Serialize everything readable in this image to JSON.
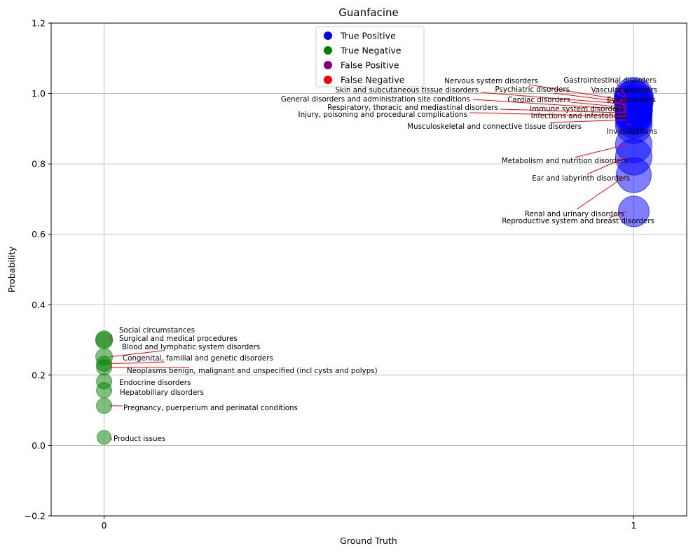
{
  "chart_data": {
    "type": "scatter",
    "title": "Guanfacine",
    "xlabel": "Ground Truth",
    "ylabel": "Probability",
    "xlim": [
      -0.1,
      1.1
    ],
    "ylim": [
      -0.2,
      1.2
    ],
    "x_ticks": [
      0,
      1
    ],
    "y_ticks": [
      -0.2,
      0.0,
      0.2,
      0.4,
      0.6,
      0.8,
      1.0,
      1.2
    ],
    "x_tick_labels": [
      "0",
      "1"
    ],
    "y_tick_labels": [
      "−0.2",
      "0.0",
      "0.2",
      "0.4",
      "0.6",
      "0.8",
      "1.0",
      "1.2"
    ],
    "grid": true,
    "legend_position": "top-center",
    "legend": [
      {
        "label": "True Positive",
        "color": "#0000ff"
      },
      {
        "label": "True Negative",
        "color": "#008000"
      },
      {
        "label": "False Positive",
        "color": "#800080"
      },
      {
        "label": "False Negative",
        "color": "#ff0000"
      }
    ],
    "annotation_line_color": "#ff0000",
    "points": [
      {
        "label": "Gastrointestinal disorders",
        "x": 1,
        "y": 0.99,
        "class": "True Positive",
        "size": 28
      },
      {
        "label": "Vascular disorders",
        "x": 1,
        "y": 0.985,
        "class": "True Positive",
        "size": 27
      },
      {
        "label": "Nervous system disorders",
        "x": 1,
        "y": 0.98,
        "class": "True Positive",
        "size": 28
      },
      {
        "label": "Psychiatric disorders",
        "x": 1,
        "y": 0.975,
        "class": "True Positive",
        "size": 27
      },
      {
        "label": "Skin and subcutaneous tissue disorders",
        "x": 1,
        "y": 0.97,
        "class": "True Positive",
        "size": 26
      },
      {
        "label": "Eye disorders",
        "x": 1,
        "y": 0.965,
        "class": "True Positive",
        "size": 26
      },
      {
        "label": "Cardiac disorders",
        "x": 1,
        "y": 0.96,
        "class": "True Positive",
        "size": 26
      },
      {
        "label": "General disorders and administration site conditions",
        "x": 1,
        "y": 0.955,
        "class": "True Positive",
        "size": 27
      },
      {
        "label": "Immune system disorders",
        "x": 1,
        "y": 0.95,
        "class": "True Positive",
        "size": 26
      },
      {
        "label": "Respiratory, thoracic and mediastinal disorders",
        "x": 1,
        "y": 0.945,
        "class": "True Positive",
        "size": 26
      },
      {
        "label": "Infections and infestations",
        "x": 1,
        "y": 0.94,
        "class": "True Positive",
        "size": 26
      },
      {
        "label": "Injury, poisoning and procedural complications",
        "x": 1,
        "y": 0.935,
        "class": "True Positive",
        "size": 26
      },
      {
        "label": "Musculoskeletal and connective tissue disorders",
        "x": 1,
        "y": 0.925,
        "class": "True Positive",
        "size": 26
      },
      {
        "label": "Investigations",
        "x": 1,
        "y": 0.91,
        "class": "True Positive",
        "size": 26
      },
      {
        "label": "Metabolism and nutrition disorders",
        "x": 1,
        "y": 0.855,
        "class": "True Positive",
        "size": 26
      },
      {
        "label": "Ear and labyrinth disorders",
        "x": 1,
        "y": 0.82,
        "class": "True Positive",
        "size": 26
      },
      {
        "label": "Renal and urinary disorders",
        "x": 1,
        "y": 0.768,
        "class": "True Positive",
        "size": 25
      },
      {
        "label": "Reproductive system and breast disorders",
        "x": 1,
        "y": 0.665,
        "class": "True Positive",
        "size": 22
      },
      {
        "label": "Social circumstances",
        "x": 0,
        "y": 0.302,
        "class": "True Negative",
        "size": 12
      },
      {
        "label": "Surgical and medical procedures",
        "x": 0,
        "y": 0.298,
        "class": "True Negative",
        "size": 12
      },
      {
        "label": "Blood and lymphatic system disorders",
        "x": 0,
        "y": 0.252,
        "class": "True Negative",
        "size": 12
      },
      {
        "label": "Congenital, familial and genetic disorders",
        "x": 0,
        "y": 0.232,
        "class": "True Negative",
        "size": 11
      },
      {
        "label": "Neoplasms benign, malignant and unspecified (incl cysts and polyps)",
        "x": 0,
        "y": 0.222,
        "class": "True Negative",
        "size": 11
      },
      {
        "label": "Endocrine disorders",
        "x": 0,
        "y": 0.182,
        "class": "True Negative",
        "size": 11
      },
      {
        "label": "Hepatobiliary disorders",
        "x": 0,
        "y": 0.157,
        "class": "True Negative",
        "size": 11
      },
      {
        "label": "Pregnancy, puerperium and perinatal conditions",
        "x": 0,
        "y": 0.113,
        "class": "True Negative",
        "size": 11
      },
      {
        "label": "Product issues",
        "x": 0,
        "y": 0.023,
        "class": "True Negative",
        "size": 10
      }
    ]
  }
}
